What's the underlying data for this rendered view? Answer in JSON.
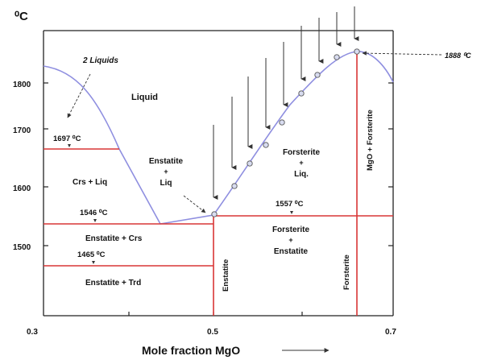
{
  "y_unit": "⁰C",
  "y_ticks": [
    "1800",
    "1700",
    "1600",
    "1500"
  ],
  "x_ticks": [
    "0.3",
    "0.5",
    "0.7"
  ],
  "x_label": "Mole fraction MgO",
  "annotations": {
    "two_liquids": "2 Liquids",
    "liquid": "Liquid",
    "t1697": "1697 ⁰C",
    "crs_liq": "Crs + Liq",
    "enstatite_liq_1": "Enstatite",
    "enstatite_liq_2": "+",
    "enstatite_liq_3": "Liq",
    "t1546": "1546 ⁰C",
    "enstatite_crs": "Enstatite + Crs",
    "t1465": "1465 ⁰C",
    "enstatite_trd": "Enstatite + Trd",
    "enstatite_vertical": "Enstatite",
    "forsterite_liq_1": "Forsterite",
    "forsterite_liq_2": "+",
    "forsterite_liq_3": "Liq.",
    "t1557": "1557 ⁰C",
    "forsterite_enst_1": "Forsterite",
    "forsterite_enst_2": "+",
    "forsterite_enst_3": "Enstatite",
    "forsterite_vertical": "Forsterite",
    "mgo_forsterite": "MgO + Forsterite",
    "t1888": "1888 ⁰C"
  },
  "colors": {
    "liquidus": "#8f8fe0",
    "phase_line": "#d93636",
    "axis": "#222222",
    "marker_fill": "#d8dcf0"
  }
}
